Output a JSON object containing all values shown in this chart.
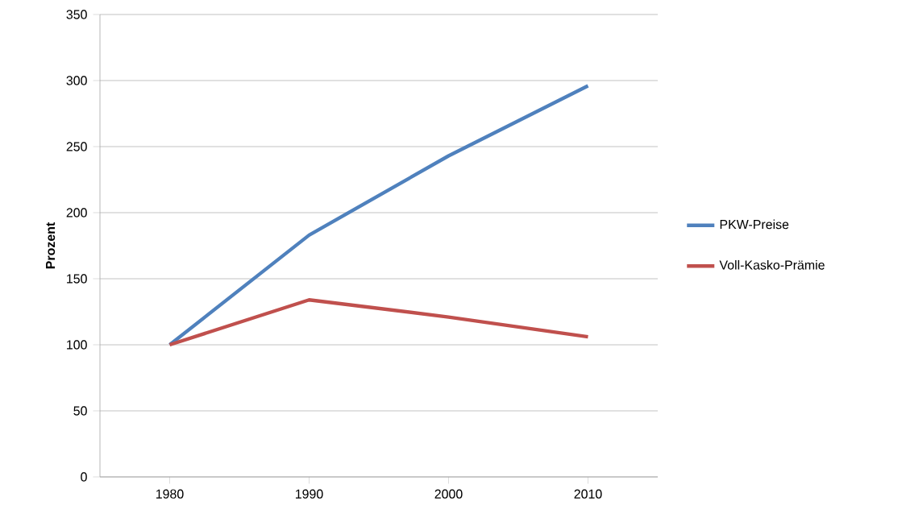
{
  "chart_data": {
    "type": "line",
    "ylabel": "Prozent",
    "categories": [
      "1980",
      "1990",
      "2000",
      "2010"
    ],
    "series": [
      {
        "name": "PKW-Preise",
        "color": "#4f81bd",
        "values": [
          100,
          183,
          243,
          296
        ]
      },
      {
        "name": "Voll-Kasko-Prämie",
        "color": "#c0504d",
        "values": [
          100,
          134,
          121,
          106
        ]
      }
    ],
    "ylim": [
      0,
      350
    ],
    "yticks": [
      0,
      50,
      100,
      150,
      200,
      250,
      300,
      350
    ],
    "grid": "y",
    "legend": "right",
    "marker": "none",
    "line_style": "solid"
  }
}
